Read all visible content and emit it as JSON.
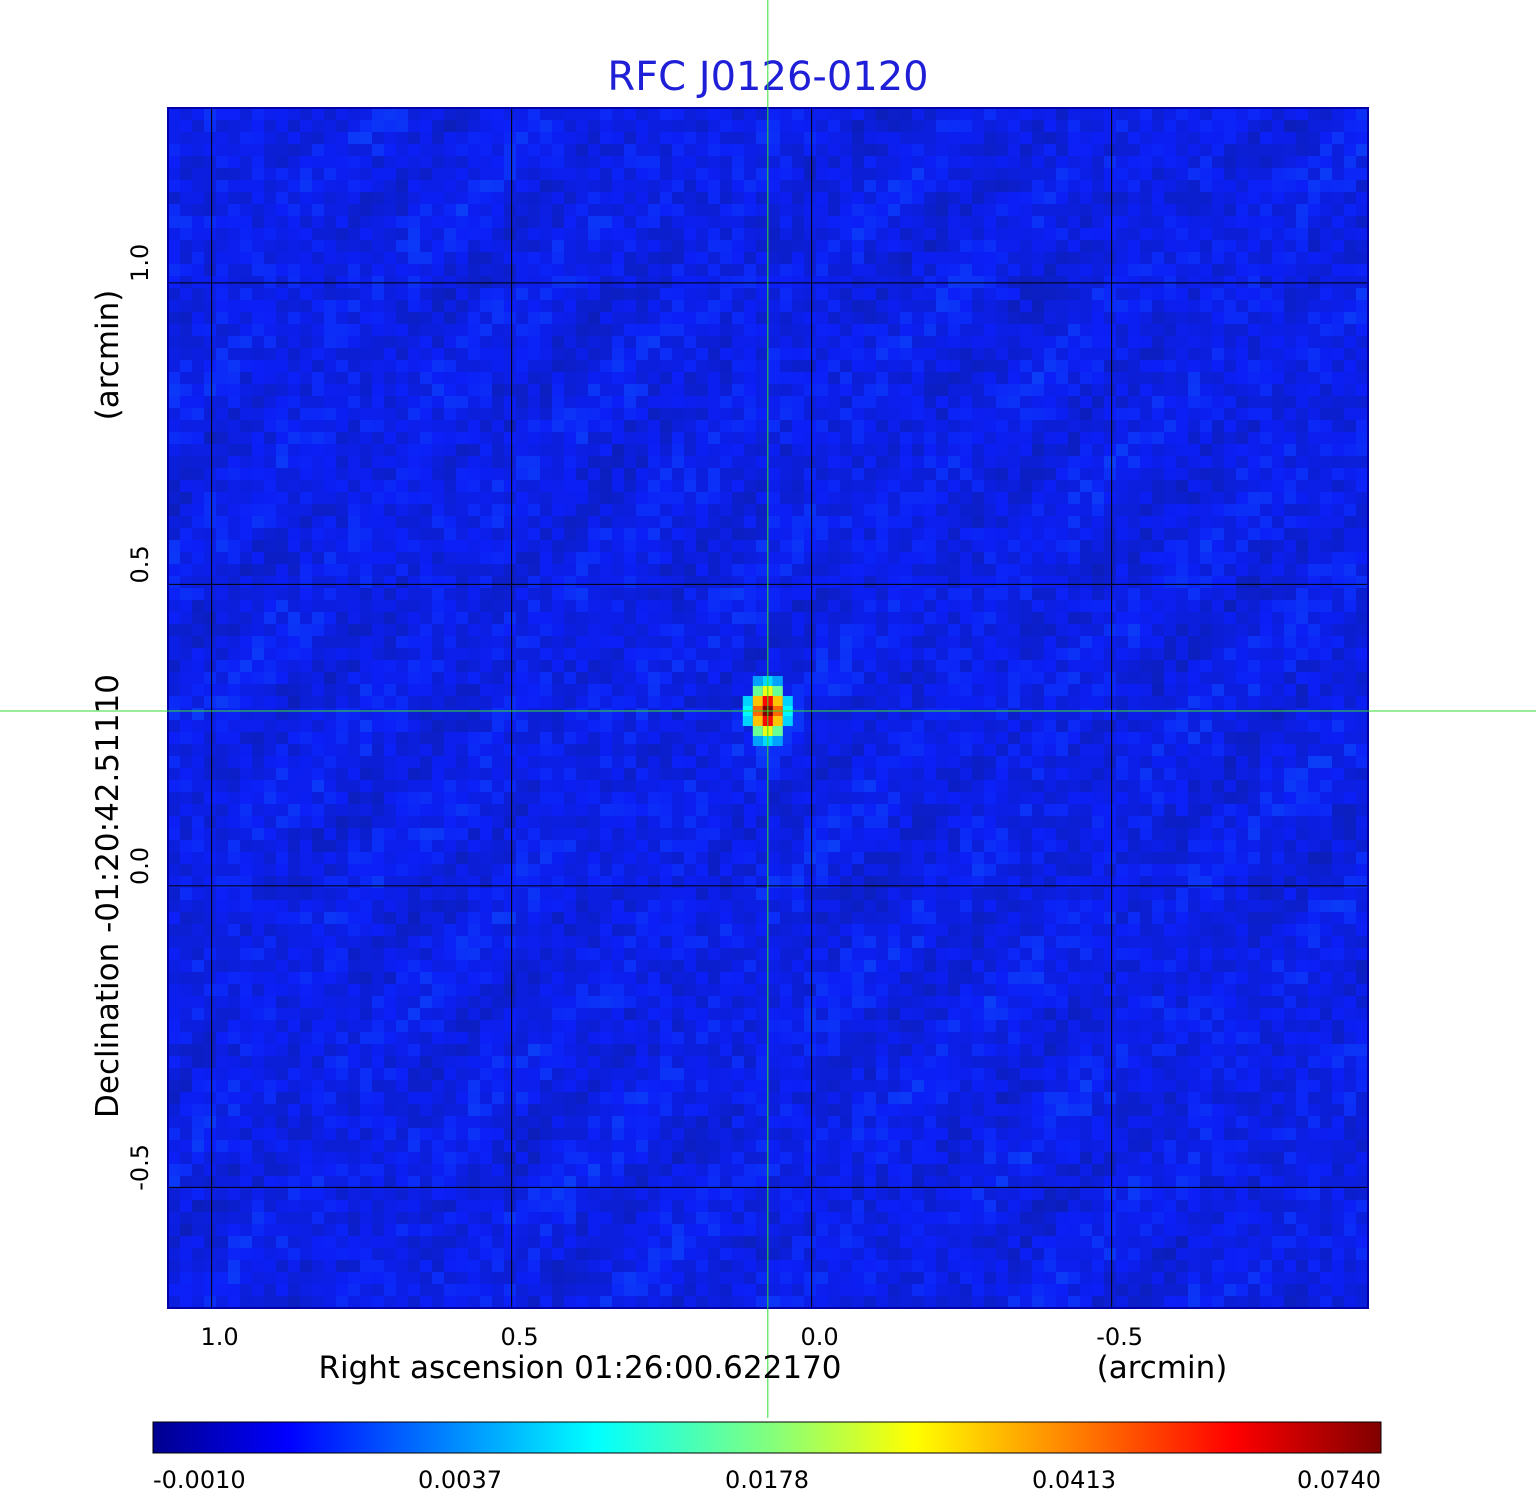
{
  "chart_data": {
    "type": "heatmap",
    "title": "RFC J0126-0120",
    "x_axis": {
      "label": "Right ascension  01:26:00.622170",
      "unit_label": "(arcmin)",
      "ticks": [
        1.0,
        0.5,
        0.0,
        -0.5
      ],
      "tick_labels": [
        "1.0",
        "0.5",
        "0.0",
        "-0.5"
      ],
      "range": [
        1.0727,
        -0.9273
      ],
      "grid": true
    },
    "y_axis": {
      "label": "Declination  -01:20:42.51110",
      "unit_label": "(arcmin)",
      "ticks": [
        1.0,
        0.5,
        0.0,
        -0.5
      ],
      "tick_labels": [
        "1.0",
        "0.5",
        "0.0",
        "-0.5"
      ],
      "range": [
        -0.7,
        1.29
      ],
      "grid": true
    },
    "source": {
      "x": 0.073,
      "y": 0.29,
      "peak": 0.074
    },
    "crosshair": {
      "x": 0.073,
      "y": 0.29,
      "color": "#33dd33"
    },
    "background_level": 0.0006,
    "colorbar": {
      "colormap": "jet",
      "ticks": [
        -0.001,
        0.0037,
        0.0178,
        0.0413,
        0.074
      ],
      "tick_labels": [
        "-0.0010",
        "0.0037",
        "0.0178",
        "0.0413",
        "0.0740"
      ]
    },
    "colors": {
      "title": "#1f1fd8",
      "grid": "#000000",
      "frame": "#0000aa"
    }
  }
}
